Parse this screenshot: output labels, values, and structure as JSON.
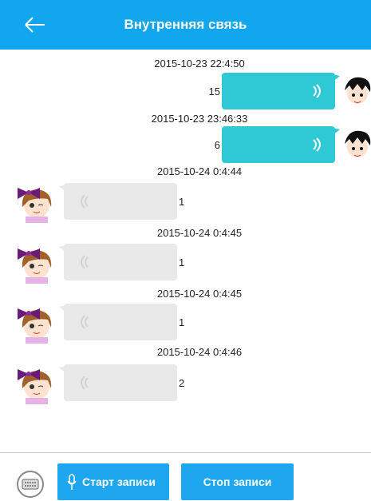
{
  "header": {
    "title": "Внутренняя связь"
  },
  "messages": [
    {
      "time": "2015-10-23 22:4:50",
      "duration": 15
    },
    {
      "time": "2015-10-23 23:46:33",
      "duration": 6
    },
    {
      "time": "2015-10-24 0:4:44",
      "duration": 1
    },
    {
      "time": "2015-10-24 0:4:45",
      "duration": 1
    },
    {
      "time": "2015-10-24 0:4:45",
      "duration": 1
    },
    {
      "time": "2015-10-24 0:4:46",
      "duration": 2
    }
  ],
  "footer": {
    "buttons": [
      "Старт записи",
      "Стоп записи"
    ]
  }
}
